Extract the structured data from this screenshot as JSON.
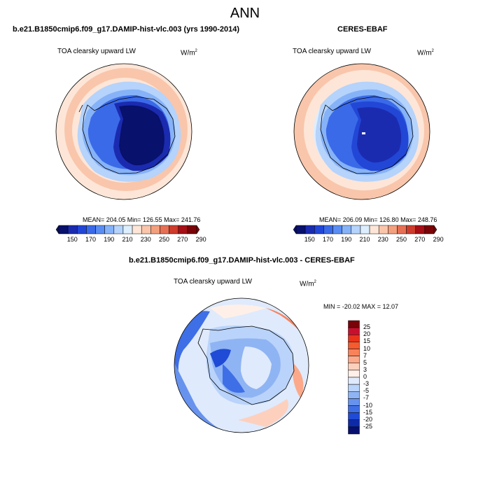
{
  "title": "ANN",
  "panels": [
    {
      "title": "b.e21.B1850cmip6.f09_g17.DAMIP-hist-vlc.003 (yrs 1990-2014)",
      "variable": "TOA clearsky upward LW",
      "units_base": "W/m",
      "units_exp": "2",
      "stats": "MEAN= 204.05   Min= 126.55   Max= 241.76",
      "colorbar": {
        "ticks": [
          "150",
          "170",
          "190",
          "210",
          "230",
          "250",
          "270",
          "290"
        ],
        "colors": [
          "#08116b",
          "#1b2bb0",
          "#2247d6",
          "#3a6ae8",
          "#5a8df2",
          "#86b2f8",
          "#b5d3fb",
          "#ddeefe",
          "#fde6d8",
          "#f9c6ab",
          "#f2a07e",
          "#e67055",
          "#cd3c2c",
          "#a50f15",
          "#7a0308"
        ]
      }
    },
    {
      "title": "CERES-EBAF",
      "variable": "TOA clearsky upward LW",
      "units_base": "W/m",
      "units_exp": "2",
      "stats": "MEAN= 206.09   Min= 126.80   Max= 248.76",
      "colorbar": {
        "ticks": [
          "150",
          "170",
          "190",
          "210",
          "230",
          "250",
          "270",
          "290"
        ],
        "colors": [
          "#08116b",
          "#1b2bb0",
          "#2247d6",
          "#3a6ae8",
          "#5a8df2",
          "#86b2f8",
          "#b5d3fb",
          "#ddeefe",
          "#fde6d8",
          "#f9c6ab",
          "#f2a07e",
          "#e67055",
          "#cd3c2c",
          "#a50f15",
          "#7a0308"
        ]
      }
    },
    {
      "title": "b.e21.B1850cmip6.f09_g17.DAMIP-hist-vlc.003 - CERES-EBAF",
      "variable": "TOA clearsky upward LW",
      "units_base": "W/m",
      "units_exp": "2",
      "stats": "MIN = -20.02  MAX =  12.07",
      "colorbar": {
        "ticks": [
          "25",
          "20",
          "15",
          "10",
          "7",
          "5",
          "3",
          "0",
          "-3",
          "-5",
          "-7",
          "-10",
          "-15",
          "-20",
          "-25"
        ],
        "colors": [
          "#7a0308",
          "#c8102e",
          "#e8341c",
          "#f75a2e",
          "#f9825b",
          "#fba98a",
          "#fdd0bd",
          "#fef0e8",
          "#dfeafc",
          "#b9d3fa",
          "#8fb4f4",
          "#6793ee",
          "#3f6fe6",
          "#1f4bd6",
          "#0d2aa8",
          "#08106e"
        ]
      }
    }
  ]
}
